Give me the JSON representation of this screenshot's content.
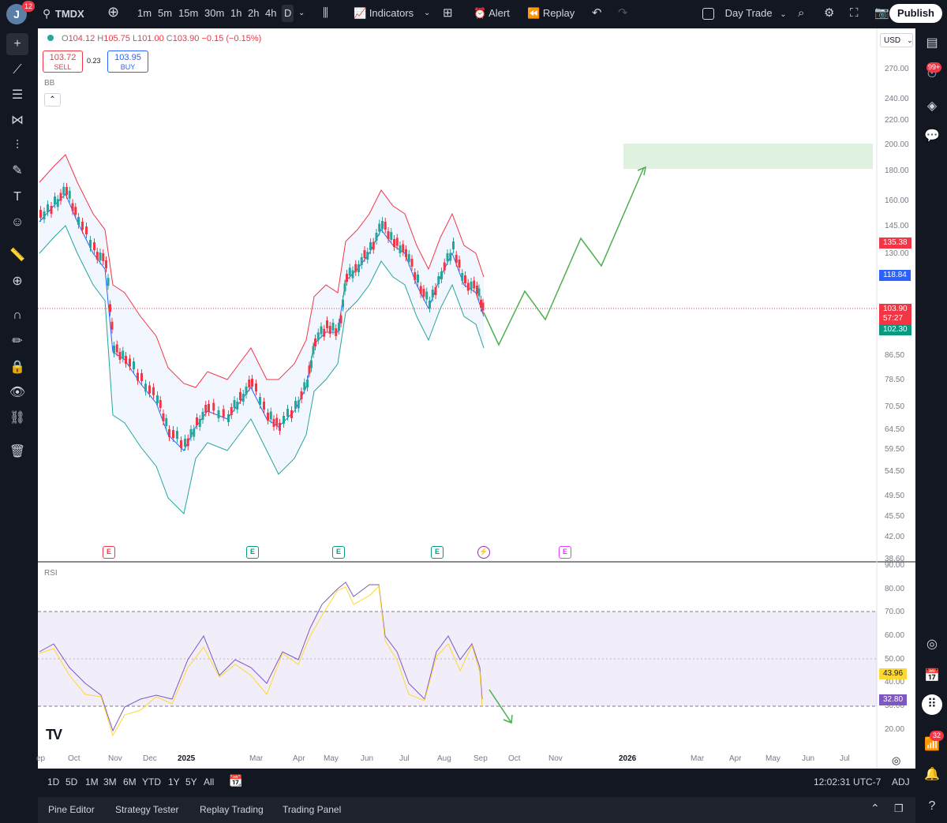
{
  "topbar": {
    "avatar_letter": "J",
    "notif_count": "12",
    "symbol": "TMDX",
    "timeframes": [
      "1m",
      "5m",
      "15m",
      "30m",
      "1h",
      "2h",
      "4h",
      "D"
    ],
    "active_timeframe": "D",
    "indicators_label": "Indicators",
    "alert_label": "Alert",
    "replay_label": "Replay",
    "layout_name": "Day Trade",
    "publish_label": "Publish"
  },
  "legend": {
    "open_label": "O",
    "open": "104.12",
    "high_label": "H",
    "high": "105.75",
    "low_label": "L",
    "low": "101.00",
    "close_label": "C",
    "close": "103.90",
    "change": "−0.15 (−0.15%)",
    "sell_price": "103.72",
    "sell_label": "SELL",
    "spread": "0.23",
    "buy_price": "103.95",
    "buy_label": "BUY",
    "indicator_label": "BB",
    "rsi_label": "RSI"
  },
  "price_axis": {
    "currency": "USD",
    "ticks": [
      "270.00",
      "240.00",
      "220.00",
      "200.00",
      "180.00",
      "160.00",
      "145.00",
      "130.00",
      "86.50",
      "78.50",
      "70.50",
      "64.50",
      "59.50",
      "54.50",
      "49.50",
      "45.50",
      "42.00",
      "38.60"
    ],
    "tag_upper_bb": "135.38",
    "tag_mid_bb": "118.84",
    "tag_last_price": "103.90",
    "tag_countdown": "57:27",
    "tag_lower_bb": "102.30"
  },
  "rsi_axis": {
    "ticks": [
      "90.00",
      "80.00",
      "70.00",
      "60.00",
      "50.00",
      "40.00",
      "30.00",
      "20.00"
    ],
    "tag_ma": "43.96",
    "tag_rsi": "32.80"
  },
  "time_axis": [
    "ep",
    "Oct",
    "Nov",
    "Dec",
    "2025",
    "Mar",
    "Apr",
    "May",
    "Jun",
    "Jul",
    "Aug",
    "Sep",
    "Oct",
    "Nov",
    "2026",
    "Mar",
    "Apr",
    "May",
    "Jun",
    "Jul"
  ],
  "colors": {
    "up": "#26a69a",
    "down": "#f23645",
    "bb_upper": "#f23645",
    "bb_basis": "#2962ff",
    "bb_lower": "#26a69a",
    "projection": "#4caf50",
    "rsi_line": "#7e57c2",
    "rsi_ma": "#fdd835"
  },
  "earnings_marker": "E",
  "bottom_toolbar": {
    "ranges": [
      "1D",
      "5D",
      "1M",
      "3M",
      "6M",
      "YTD",
      "1Y",
      "5Y",
      "All"
    ],
    "clock": "12:02:31 UTC-7",
    "adj_label": "ADJ"
  },
  "bottom_panel": {
    "tabs": [
      "Pine Editor",
      "Strategy Tester",
      "Replay Trading",
      "Trading Panel"
    ]
  },
  "right_sidebar": {
    "alerts_badge": "99+",
    "notifications_badge": "32"
  }
}
